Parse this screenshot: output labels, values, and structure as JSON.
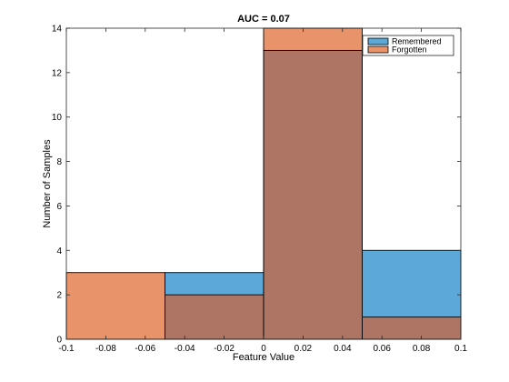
{
  "chart_data": {
    "type": "bar",
    "title": "AUC = 0.07",
    "xlabel": "Feature Value",
    "ylabel": "Number of Samples",
    "xlim": [
      -0.1,
      0.1
    ],
    "ylim": [
      0,
      14
    ],
    "grid": false,
    "legend_position": "top-right",
    "bin_edges": [
      -0.1,
      -0.05,
      0,
      0.05,
      0.1
    ],
    "x_ticks": [
      -0.1,
      -0.08,
      -0.06,
      -0.04,
      -0.02,
      0,
      0.02,
      0.04,
      0.06,
      0.08,
      0.1
    ],
    "x_tick_labels": [
      "-0.1",
      "-0.08",
      "-0.06",
      "-0.04",
      "-0.02",
      "0",
      "0.02",
      "0.04",
      "0.06",
      "0.08",
      "0.1"
    ],
    "y_ticks": [
      0,
      2,
      4,
      6,
      8,
      10,
      12,
      14
    ],
    "y_tick_labels": [
      "0",
      "2",
      "4",
      "6",
      "8",
      "10",
      "12",
      "14"
    ],
    "series": [
      {
        "name": "Remembered",
        "values": [
          0,
          3,
          13,
          4
        ],
        "color": "#5ba8d9"
      },
      {
        "name": "Forgotten",
        "values": [
          3,
          2,
          14,
          1
        ],
        "color": "#e8936a"
      }
    ],
    "overlap_color": "#ae7564"
  }
}
